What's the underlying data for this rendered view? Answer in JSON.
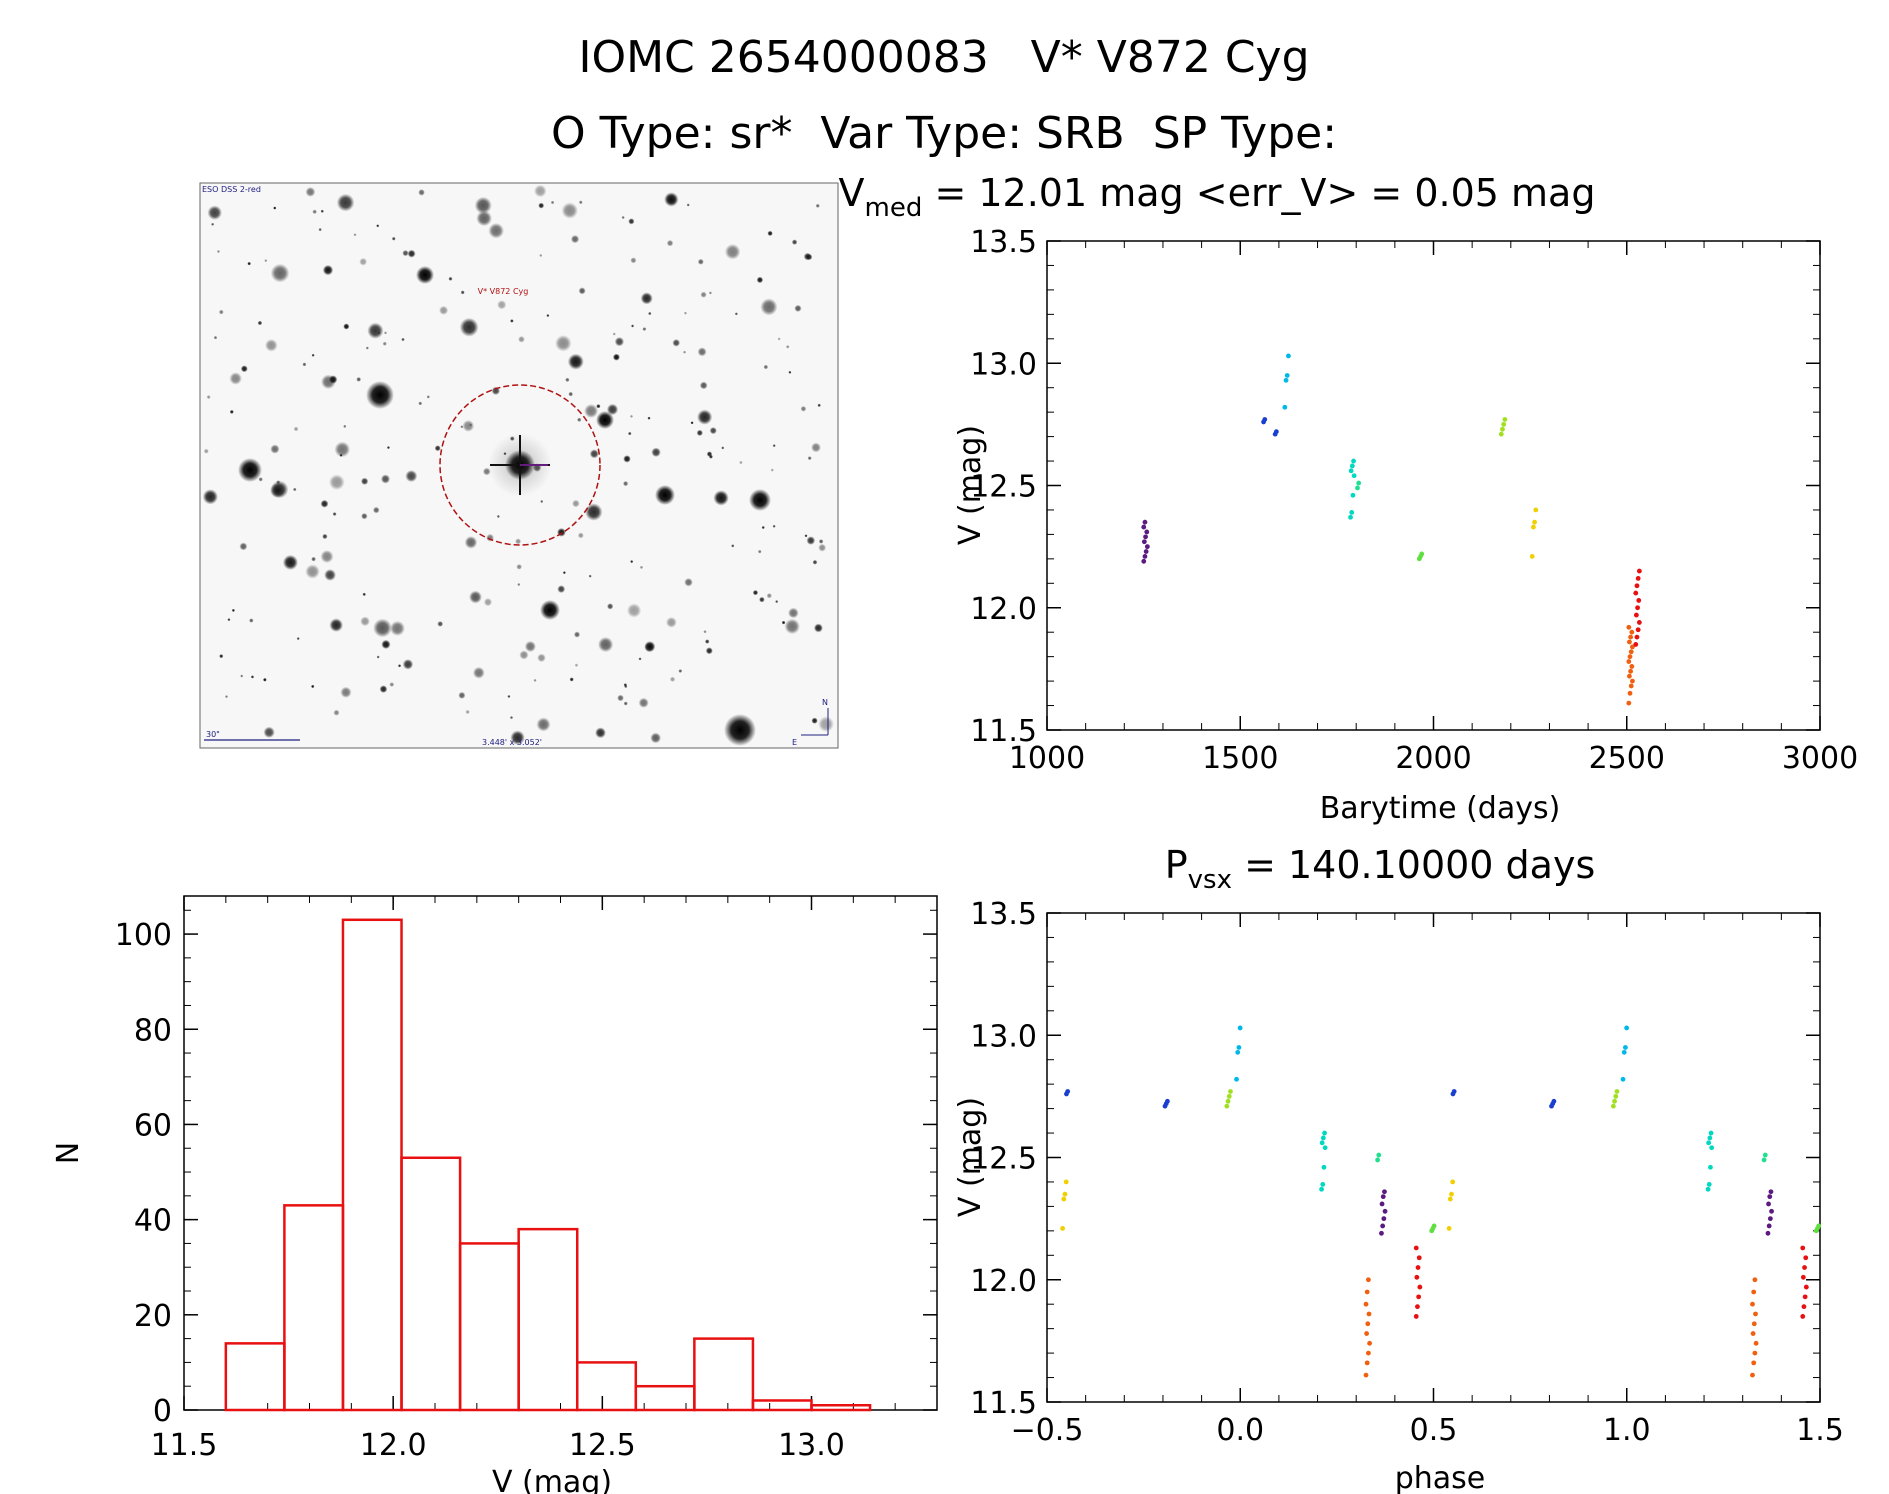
{
  "header": {
    "title_line1": "IOMC 2654000083   V* V872 Cyg",
    "title_line2": "O Type: sr*  Var Type: SRB  SP Type:"
  },
  "image_panel": {
    "survey_label": "ESO DSS 2-red",
    "target_label": "V* V872 Cyg",
    "scale_label": "30\"",
    "size_label": "3.448' x 3.052'",
    "compass_n": "N",
    "compass_e": "E"
  },
  "chart_data": [
    {
      "type": "scatter",
      "title_prefix": "V",
      "title_sub": "med",
      "title_rest": " = 12.01 mag <err_V> = 0.05 mag",
      "xlabel": "Barytime (days)",
      "ylabel": "V (mag)",
      "xlim": [
        1000,
        3000
      ],
      "ylim": [
        13.5,
        11.5
      ],
      "xticks": [
        "1000",
        "1500",
        "2000",
        "2500",
        "3000"
      ],
      "yticks": [
        "11.5",
        "12.0",
        "12.5",
        "13.0",
        "13.5"
      ],
      "groups": [
        {
          "x": 1255,
          "y": [
            12.19,
            12.21,
            12.23,
            12.25,
            12.27,
            12.29,
            12.31,
            12.33,
            12.35
          ],
          "color": "#5a1a80"
        },
        {
          "x": 1565,
          "y": [
            12.76,
            12.77
          ],
          "color": "#1a3fd0"
        },
        {
          "x": 1595,
          "y": [
            12.71,
            12.72
          ],
          "color": "#1a3fd0"
        },
        {
          "x": 1620,
          "y": [
            12.82,
            12.93,
            12.95,
            13.03
          ],
          "color": "#00b8e8"
        },
        {
          "x": 1790,
          "y": [
            12.37,
            12.39,
            12.46,
            12.54,
            12.56,
            12.58,
            12.6
          ],
          "color": "#00d8c0"
        },
        {
          "x": 1808,
          "y": [
            12.49,
            12.51
          ],
          "color": "#20e090"
        },
        {
          "x": 1968,
          "y": [
            12.2,
            12.21,
            12.22
          ],
          "color": "#60e040"
        },
        {
          "x": 2180,
          "y": [
            12.71,
            12.73,
            12.75,
            12.77
          ],
          "color": "#a0e020"
        },
        {
          "x": 2260,
          "y": [
            12.21,
            12.33,
            12.35,
            12.4
          ],
          "color": "#f0d000"
        },
        {
          "x": 2510,
          "y": [
            11.61,
            11.65,
            11.68,
            11.7,
            11.72,
            11.74,
            11.76,
            11.78,
            11.8,
            11.82,
            11.84,
            11.86,
            11.88,
            11.9,
            11.92
          ],
          "color": "#f06010"
        },
        {
          "x": 2528,
          "y": [
            11.85,
            11.88,
            11.91,
            11.94,
            11.97,
            12.0,
            12.03,
            12.06,
            12.09,
            12.12,
            12.15
          ],
          "color": "#e81010"
        }
      ]
    },
    {
      "type": "histogram",
      "xlabel": "V (mag)",
      "ylabel": "N",
      "xlim": [
        11.5,
        13.3
      ],
      "ylim": [
        0,
        108
      ],
      "xticks": [
        "11.5",
        "12.0",
        "12.5",
        "13.0"
      ],
      "yticks": [
        "0",
        "20",
        "40",
        "60",
        "80",
        "100"
      ],
      "bin_edges": [
        11.6,
        11.74,
        11.88,
        12.02,
        12.16,
        12.3,
        12.44,
        12.58,
        12.72,
        12.86,
        13.0,
        13.14
      ],
      "counts": [
        14,
        43,
        103,
        53,
        35,
        38,
        10,
        5,
        15,
        2,
        1
      ],
      "color": "#e81010"
    },
    {
      "type": "scatter",
      "title_prefix": "P",
      "title_sub": "vsx",
      "title_rest": " = 140.10000 days",
      "xlabel": "phase",
      "ylabel": "V (mag)",
      "xlim": [
        -0.5,
        1.5
      ],
      "ylim": [
        13.5,
        11.5
      ],
      "xticks": [
        "−0.5",
        "0.0",
        "0.5",
        "1.0",
        "1.5"
      ],
      "yticks": [
        "11.5",
        "12.0",
        "12.5",
        "13.0",
        "13.5"
      ],
      "groups": [
        {
          "x": -0.455,
          "y": [
            12.21,
            12.33,
            12.35,
            12.4
          ],
          "color": "#f0d000"
        },
        {
          "x": -0.445,
          "y": [
            12.76,
            12.77
          ],
          "color": "#1a3fd0"
        },
        {
          "x": -0.19,
          "y": [
            12.71,
            12.72,
            12.73
          ],
          "color": "#1a3fd0"
        },
        {
          "x": -0.03,
          "y": [
            12.71,
            12.73,
            12.75,
            12.77
          ],
          "color": "#a0e020"
        },
        {
          "x": -0.005,
          "y": [
            12.82,
            12.93,
            12.95,
            13.03
          ],
          "color": "#00b8e8"
        },
        {
          "x": 0.215,
          "y": [
            12.37,
            12.39,
            12.46,
            12.54,
            12.56,
            12.58,
            12.6
          ],
          "color": "#00d8c0"
        },
        {
          "x": 0.33,
          "y": [
            11.61,
            11.66,
            11.7,
            11.74,
            11.78,
            11.82,
            11.86,
            11.9,
            11.95,
            12.0
          ],
          "color": "#f06010"
        },
        {
          "x": 0.36,
          "y": [
            12.49,
            12.51
          ],
          "color": "#20e090"
        },
        {
          "x": 0.37,
          "y": [
            12.19,
            12.22,
            12.25,
            12.28,
            12.31,
            12.34,
            12.36
          ],
          "color": "#5a1a80"
        },
        {
          "x": 0.46,
          "y": [
            11.85,
            11.89,
            11.93,
            11.97,
            12.01,
            12.05,
            12.09,
            12.13
          ],
          "color": "#e81010"
        },
        {
          "x": 0.5,
          "y": [
            12.2,
            12.21,
            12.22
          ],
          "color": "#60e040"
        },
        {
          "x": 0.545,
          "y": [
            12.21,
            12.33,
            12.35,
            12.4
          ],
          "color": "#f0d000"
        },
        {
          "x": 0.555,
          "y": [
            12.76,
            12.77
          ],
          "color": "#1a3fd0"
        },
        {
          "x": 0.81,
          "y": [
            12.71,
            12.72,
            12.73
          ],
          "color": "#1a3fd0"
        },
        {
          "x": 0.97,
          "y": [
            12.71,
            12.73,
            12.75,
            12.77
          ],
          "color": "#a0e020"
        },
        {
          "x": 0.995,
          "y": [
            12.82,
            12.93,
            12.95,
            13.03
          ],
          "color": "#00b8e8"
        },
        {
          "x": 1.215,
          "y": [
            12.37,
            12.39,
            12.46,
            12.54,
            12.56,
            12.58,
            12.6
          ],
          "color": "#00d8c0"
        },
        {
          "x": 1.33,
          "y": [
            11.61,
            11.66,
            11.7,
            11.74,
            11.78,
            11.82,
            11.86,
            11.9,
            11.95,
            12.0
          ],
          "color": "#f06010"
        },
        {
          "x": 1.36,
          "y": [
            12.49,
            12.51
          ],
          "color": "#20e090"
        },
        {
          "x": 1.37,
          "y": [
            12.19,
            12.22,
            12.25,
            12.28,
            12.31,
            12.34,
            12.36
          ],
          "color": "#5a1a80"
        },
        {
          "x": 1.46,
          "y": [
            11.85,
            11.89,
            11.93,
            11.97,
            12.01,
            12.05,
            12.09,
            12.13
          ],
          "color": "#e81010"
        },
        {
          "x": 1.495,
          "y": [
            12.2,
            12.21,
            12.22
          ],
          "color": "#60e040"
        }
      ]
    }
  ]
}
